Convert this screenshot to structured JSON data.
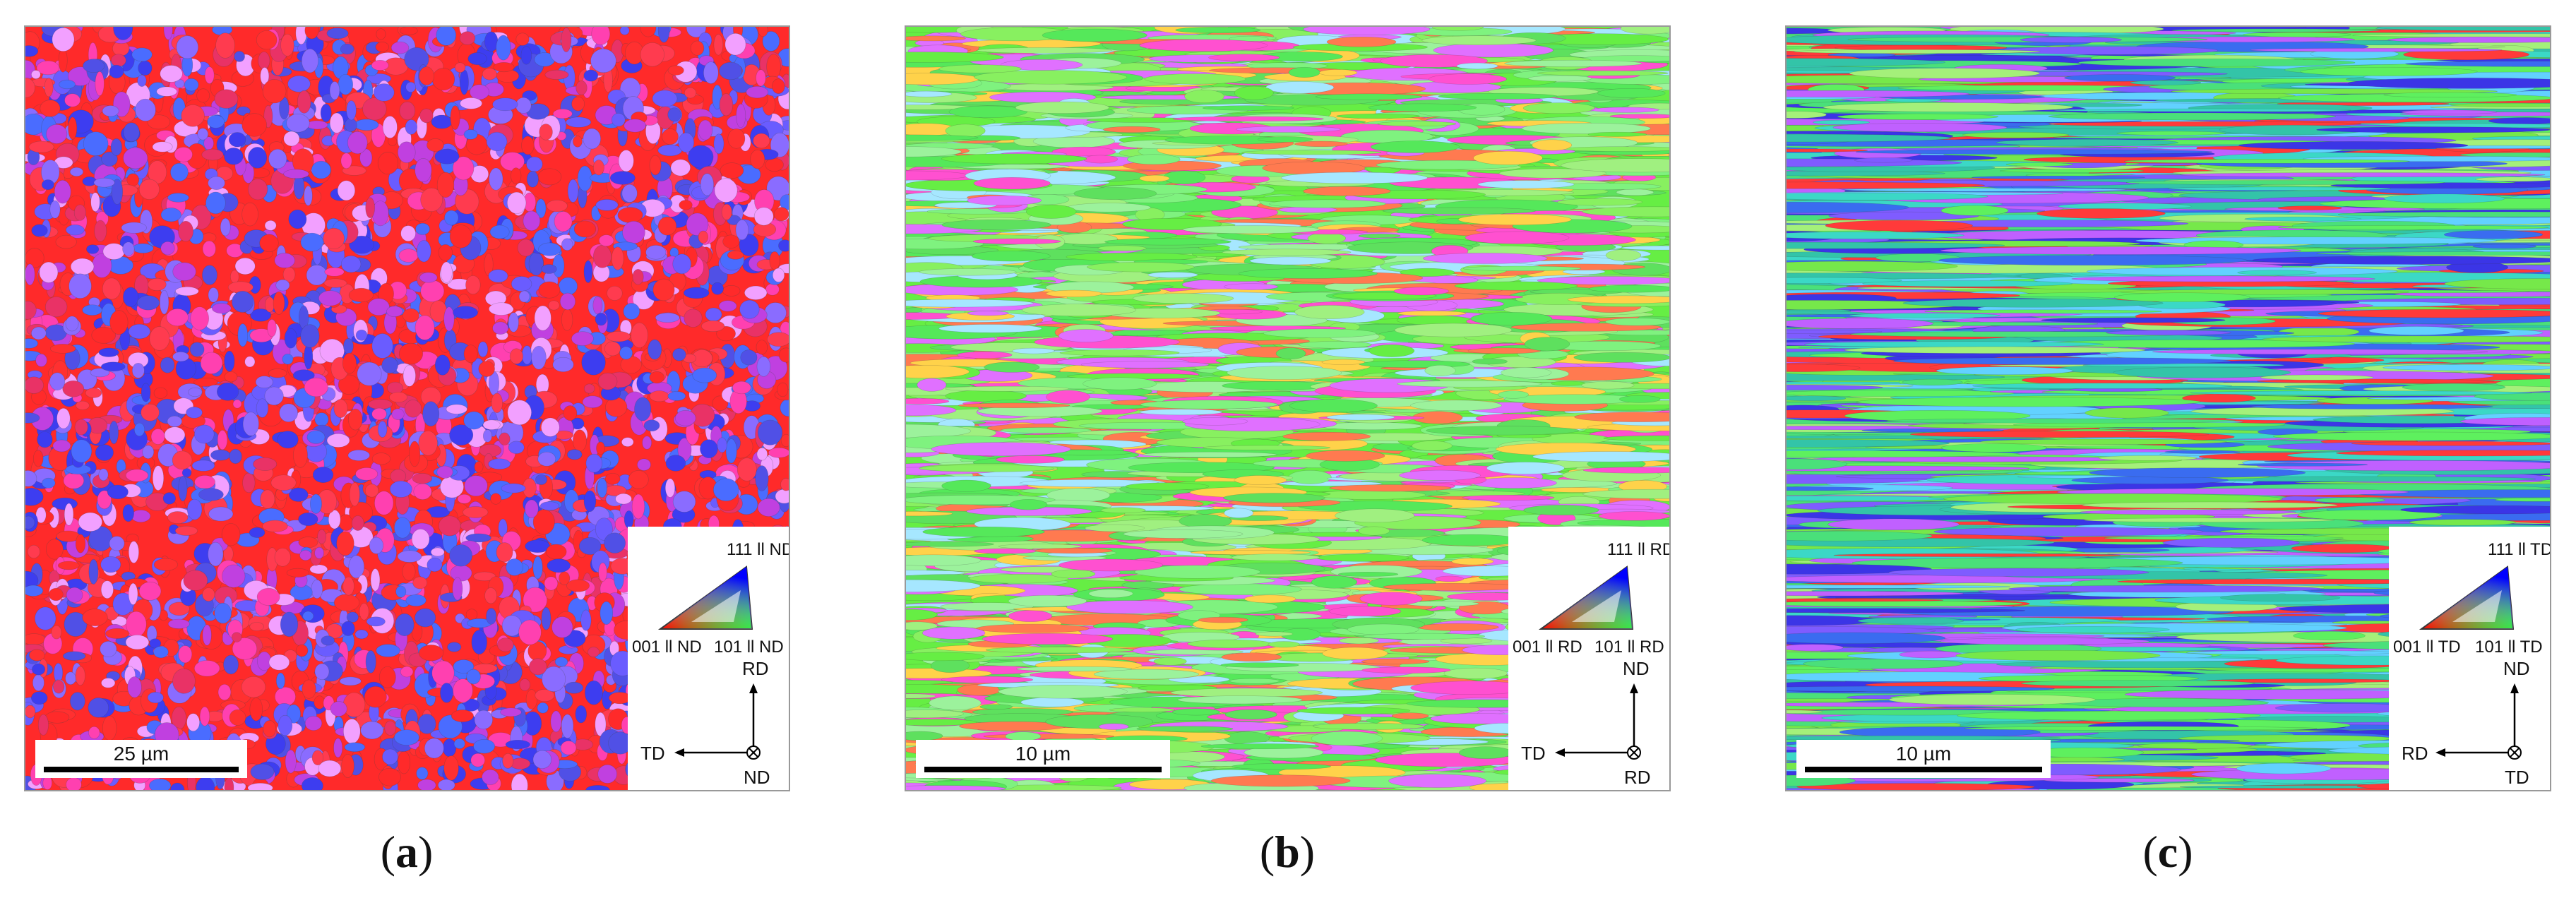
{
  "panels": [
    {
      "id": "a",
      "caption_letter": "a",
      "scale_bar": "25 µm",
      "legend": {
        "top": "111 ll ND",
        "left": "001 ll ND",
        "right": "101 ll ND"
      },
      "axes": {
        "up": "RD",
        "left": "TD",
        "center": "ND"
      },
      "palette": [
        "#ff2a2a",
        "#ff3b4f",
        "#e93266",
        "#6a5cff",
        "#3d3df0",
        "#5050e6",
        "#c040e0",
        "#ff40b0",
        "#ff3030",
        "#8a6cff",
        "#f2a0ff",
        "#4a6cff"
      ]
    },
    {
      "id": "b",
      "caption_letter": "b",
      "scale_bar": "10 µm",
      "legend": {
        "top": "111 ll RD",
        "left": "001 ll RD",
        "right": "101 ll RD"
      },
      "axes": {
        "up": "ND",
        "left": "TD",
        "center": "RD"
      },
      "palette": [
        "#66ee44",
        "#88f060",
        "#55e85a",
        "#7ff27f",
        "#a0f080",
        "#ff50d0",
        "#e070ff",
        "#ff7a50",
        "#a6e7ff",
        "#ffd24a",
        "#5ee05e",
        "#9cf29c"
      ]
    },
    {
      "id": "c",
      "caption_letter": "c",
      "scale_bar": "10 µm",
      "legend": {
        "top": "111 ll TD",
        "left": "001 ll TD",
        "right": "101 ll TD"
      },
      "axes": {
        "up": "ND",
        "left": "RD",
        "center": "TD"
      },
      "palette": [
        "#4ae07a",
        "#3bd8c6",
        "#62d1ff",
        "#3a6cf0",
        "#3b35e6",
        "#76e84a",
        "#a4f07a",
        "#c060ff",
        "#ff3a3a",
        "#7f5cff",
        "#33c4a8",
        "#5ef05e"
      ]
    }
  ]
}
